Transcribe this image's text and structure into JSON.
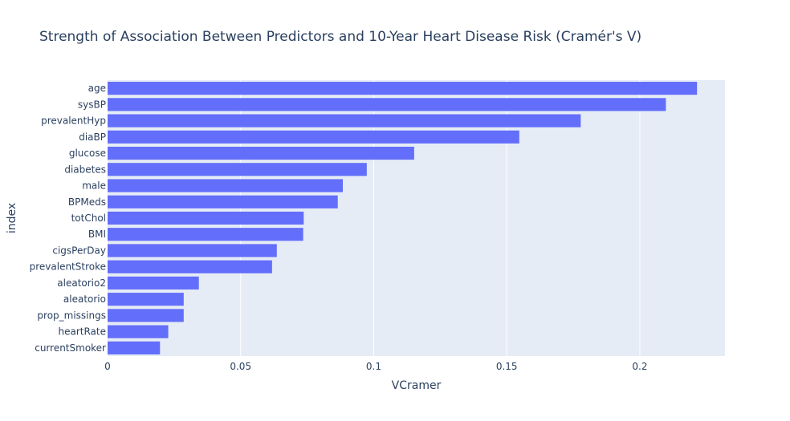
{
  "chart_data": {
    "type": "bar",
    "orientation": "horizontal",
    "title": "Strength of Association Between Predictors and 10-Year Heart Disease Risk (Cramér's V)",
    "xlabel": "VCramer",
    "ylabel": "index",
    "xlim": [
      0,
      0.232
    ],
    "xticks": [
      0,
      0.05,
      0.1,
      0.15,
      0.2
    ],
    "xtick_labels": [
      "0",
      "0.05",
      "0.1",
      "0.15",
      "0.2"
    ],
    "grid": true,
    "colors": {
      "bar": "#636efa",
      "plot_bg": "#e5ecf6",
      "grid": "#ffffff",
      "text": "#2a3f5f"
    },
    "categories": [
      "age",
      "sysBP",
      "prevalentHyp",
      "diaBP",
      "glucose",
      "diabetes",
      "male",
      "BPMeds",
      "totChol",
      "BMI",
      "cigsPerDay",
      "prevalentStroke",
      "aleatorio2",
      "aleatorio",
      "prop_missings",
      "heartRate",
      "currentSmoker"
    ],
    "values": [
      0.2215,
      0.2098,
      0.1778,
      0.1547,
      0.1152,
      0.0974,
      0.0884,
      0.0865,
      0.0737,
      0.0735,
      0.0636,
      0.0618,
      0.0343,
      0.0286,
      0.0286,
      0.0228,
      0.0197
    ]
  }
}
